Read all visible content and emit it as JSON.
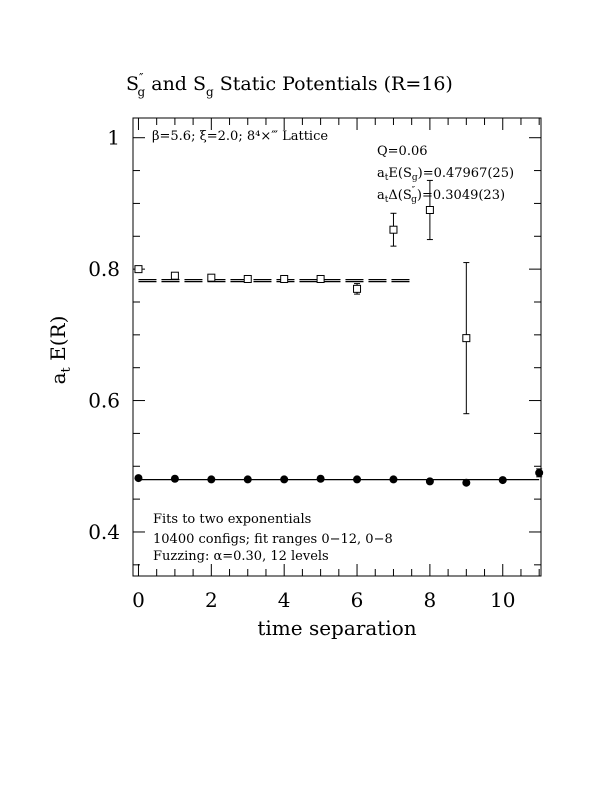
{
  "chart_data": {
    "type": "scatter",
    "title": {
      "s_main": "S",
      "s_sup": "″",
      "s_sub": "g",
      "middle": "and",
      "s2_main": "S",
      "s2_sub": "g",
      "rest": "Static Potentials (R=16)"
    },
    "xlabel": "time separation",
    "ylabel": {
      "main": "a",
      "sub": "t",
      "rest": " E(R)"
    },
    "xlim": [
      -0.15,
      11.05
    ],
    "ylim": [
      0.333,
      1.03
    ],
    "xticks": [
      0,
      2,
      4,
      6,
      8,
      10
    ],
    "yticks": [
      0.4,
      0.6,
      0.8,
      1.0
    ],
    "ytick_labels": [
      "0.4",
      "0.6",
      "0.8",
      "1"
    ],
    "grid": false,
    "info_top_left": "β=5.6; ξ=2.0; 8⁴×‴ Lattice",
    "info_q": "Q=0.06",
    "info_e": {
      "pre": "a",
      "pre_sub": "t",
      "mid": "E(S",
      "mid_sub": "g",
      "post": ")=0.47967(25)"
    },
    "info_d": {
      "pre": "a",
      "pre_sub": "t",
      "mid": "Δ(S",
      "mid_sup": "″",
      "mid_sub": "g",
      "post": ")=0.3049(23)"
    },
    "notes": [
      "Fits to two exponentials",
      "10400 configs; fit ranges 0−12, 0−8",
      "Fuzzing: α=0.30, 12 levels"
    ],
    "series": [
      {
        "marker": "open-square",
        "x": [
          0,
          1,
          2,
          3,
          4,
          5,
          6,
          7,
          8,
          9
        ],
        "y": [
          0.8,
          0.79,
          0.787,
          0.785,
          0.785,
          0.785,
          0.77,
          0.86,
          0.89,
          0.695
        ],
        "yerr": [
          0.003,
          0.003,
          0.003,
          0.003,
          0.003,
          0.005,
          0.008,
          0.025,
          0.045,
          0.115
        ]
      },
      {
        "marker": "filled-circle",
        "x": [
          0,
          1,
          2,
          3,
          4,
          5,
          6,
          7,
          8,
          9,
          10,
          11
        ],
        "y": [
          0.482,
          0.481,
          0.48,
          0.48,
          0.48,
          0.481,
          0.48,
          0.48,
          0.477,
          0.475,
          0.479,
          0.49
        ],
        "yerr": [
          0.001,
          0.001,
          0.001,
          0.001,
          0.001,
          0.001,
          0.001,
          0.001,
          0.002,
          0.002,
          0.003,
          0.006
        ]
      }
    ],
    "fit_lines": [
      {
        "style": "dashed",
        "y": 0.784,
        "x": [
          0,
          7.5
        ]
      },
      {
        "style": "dashed",
        "y": 0.781,
        "x": [
          0,
          7.5
        ]
      },
      {
        "style": "solid",
        "y": 0.4797,
        "x": [
          0,
          11
        ]
      }
    ]
  }
}
